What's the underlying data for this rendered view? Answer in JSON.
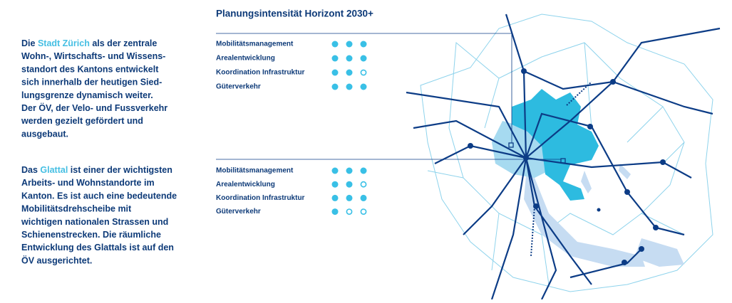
{
  "title": "Planungsintensität Horizont 2030+",
  "paragraphs": [
    {
      "lines": [
        [
          {
            "text": "Die "
          },
          {
            "text": "Stadt Zürich",
            "highlight": true
          },
          {
            "text": " als der zentrale"
          }
        ],
        [
          {
            "text": "Wohn-, Wirtschafts- und Wissens-"
          }
        ],
        [
          {
            "text": "standort des Kantons entwickelt"
          }
        ],
        [
          {
            "text": "sich innerhalb der heutigen Sied-"
          }
        ],
        [
          {
            "text": "lungsgrenze dynamisch weiter."
          }
        ],
        [
          {
            "text": "Der ÖV, der Velo- und Fussverkehr"
          }
        ],
        [
          {
            "text": "werden gezielt gefördert und"
          }
        ],
        [
          {
            "text": "ausgebaut."
          }
        ]
      ]
    },
    {
      "lines": [
        [
          {
            "text": "Das "
          },
          {
            "text": "Glattal",
            "highlight": true
          },
          {
            "text": " ist einer der wichtigsten"
          }
        ],
        [
          {
            "text": "Arbeits- und Wohnstandorte im"
          }
        ],
        [
          {
            "text": "Kanton. Es ist auch eine bedeutende"
          }
        ],
        [
          {
            "text": "Mobilitätsdrehscheibe mit"
          }
        ],
        [
          {
            "text": "wichtigen nationalen Strassen und"
          }
        ],
        [
          {
            "text": "Schienenstrecken. Die räumliche"
          }
        ],
        [
          {
            "text": "Entwicklung des Glattals ist auf den"
          }
        ],
        [
          {
            "text": "ÖV ausgerichtet."
          }
        ]
      ]
    }
  ],
  "ratings": [
    {
      "rows": [
        {
          "label": "Mobilitätsmanagement",
          "filled": 3,
          "total": 3
        },
        {
          "label": "Arealentwicklung",
          "filled": 3,
          "total": 3
        },
        {
          "label": "Koordination Infrastruktur",
          "filled": 2,
          "total": 3
        },
        {
          "label": "Güterverkehr",
          "filled": 3,
          "total": 3
        }
      ]
    },
    {
      "rows": [
        {
          "label": "Mobilitätsmanagement",
          "filled": 3,
          "total": 3
        },
        {
          "label": "Arealentwicklung",
          "filled": 2,
          "total": 3
        },
        {
          "label": "Koordination Infrastruktur",
          "filled": 3,
          "total": 3
        },
        {
          "label": "Güterverkehr",
          "filled": 1,
          "total": 3
        }
      ]
    }
  ]
}
